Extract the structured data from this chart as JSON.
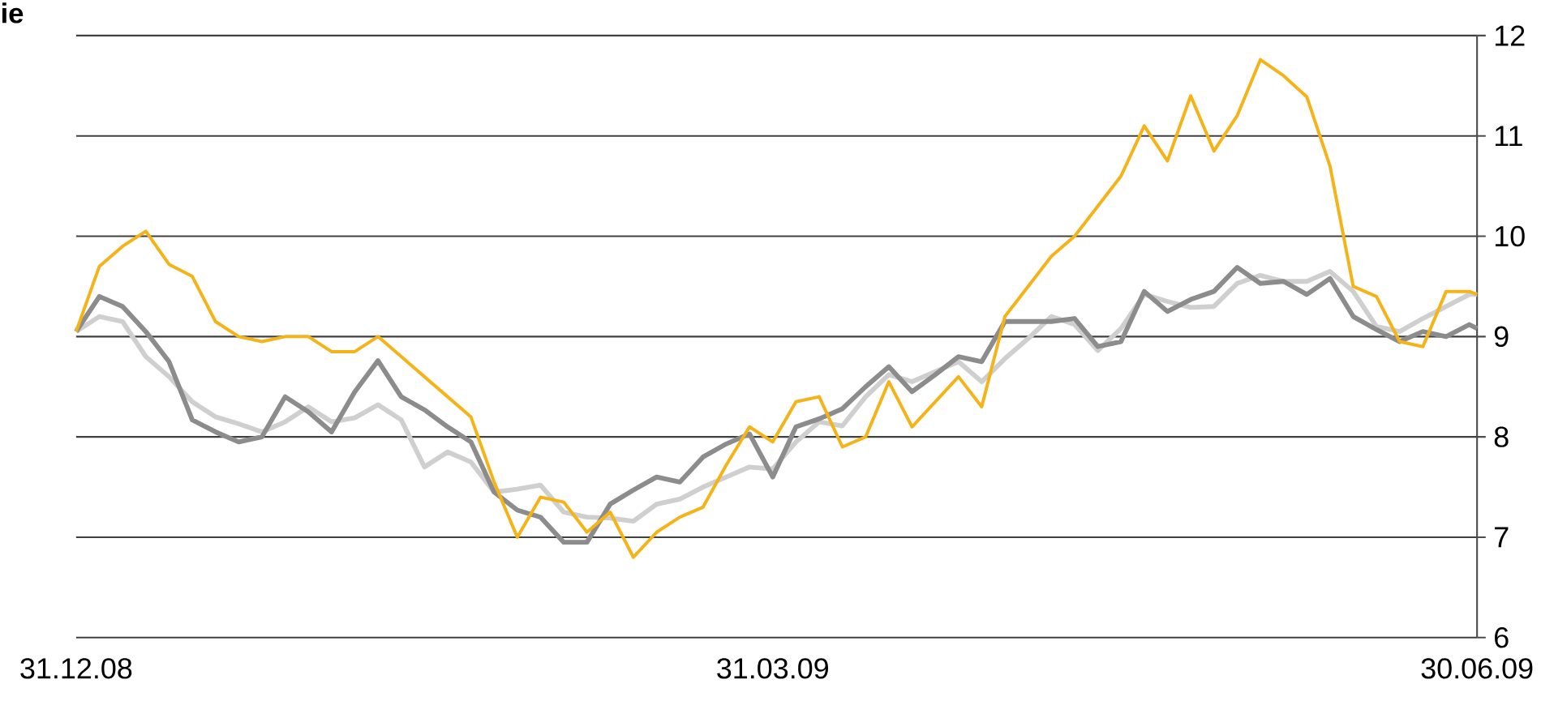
{
  "chart_data": {
    "type": "line",
    "title": "ie",
    "x": [
      "2008-12-31",
      "2009-01-03",
      "2009-01-06",
      "2009-01-09",
      "2009-01-12",
      "2009-01-15",
      "2009-01-18",
      "2009-01-21",
      "2009-01-24",
      "2009-01-27",
      "2009-01-30",
      "2009-02-02",
      "2009-02-05",
      "2009-02-08",
      "2009-02-11",
      "2009-02-14",
      "2009-02-17",
      "2009-02-20",
      "2009-02-23",
      "2009-02-26",
      "2009-03-01",
      "2009-03-04",
      "2009-03-07",
      "2009-03-10",
      "2009-03-13",
      "2009-03-16",
      "2009-03-19",
      "2009-03-22",
      "2009-03-25",
      "2009-03-28",
      "2009-03-31",
      "2009-04-03",
      "2009-04-06",
      "2009-04-09",
      "2009-04-12",
      "2009-04-15",
      "2009-04-18",
      "2009-04-21",
      "2009-04-24",
      "2009-04-27",
      "2009-04-30",
      "2009-05-03",
      "2009-05-06",
      "2009-05-09",
      "2009-05-12",
      "2009-05-15",
      "2009-05-18",
      "2009-05-21",
      "2009-05-24",
      "2009-05-27",
      "2009-05-30",
      "2009-06-02",
      "2009-06-05",
      "2009-06-08",
      "2009-06-11",
      "2009-06-14",
      "2009-06-17",
      "2009-06-20",
      "2009-06-23",
      "2009-06-26",
      "2009-06-29",
      "2009-06-30"
    ],
    "series": [
      {
        "color": "#cfcfcf",
        "values": [
          9.05,
          9.2,
          9.15,
          8.8,
          8.6,
          8.35,
          8.2,
          8.13,
          8.05,
          8.15,
          8.3,
          8.15,
          8.19,
          8.32,
          8.17,
          7.7,
          7.85,
          7.75,
          7.45,
          7.48,
          7.52,
          7.25,
          7.2,
          7.19,
          7.16,
          7.33,
          7.38,
          7.5,
          7.6,
          7.7,
          7.68,
          7.95,
          8.15,
          8.11,
          8.4,
          8.62,
          8.55,
          8.65,
          8.75,
          8.55,
          8.78,
          8.98,
          9.2,
          9.12,
          8.86,
          9.08,
          9.42,
          9.35,
          9.29,
          9.3,
          9.53,
          9.61,
          9.55,
          9.55,
          9.65,
          9.45,
          9.1,
          9.05,
          9.18,
          9.3,
          9.42,
          9.42
        ]
      },
      {
        "color": "#8c8c8c",
        "values": [
          9.05,
          9.4,
          9.3,
          9.05,
          8.75,
          8.17,
          8.05,
          7.95,
          8.0,
          8.4,
          8.25,
          8.05,
          8.45,
          8.76,
          8.4,
          8.27,
          8.1,
          7.95,
          7.45,
          7.27,
          7.2,
          6.95,
          6.95,
          7.33,
          7.47,
          7.6,
          7.55,
          7.8,
          7.93,
          8.03,
          7.6,
          8.1,
          8.18,
          8.28,
          8.5,
          8.7,
          8.45,
          8.62,
          8.8,
          8.75,
          9.15,
          9.15,
          9.15,
          9.18,
          8.9,
          8.95,
          9.45,
          9.25,
          9.37,
          9.45,
          9.69,
          9.53,
          9.55,
          9.42,
          9.58,
          9.2,
          9.07,
          8.95,
          9.05,
          9.0,
          9.12,
          9.08
        ]
      },
      {
        "color": "#f5b31a",
        "values": [
          9.05,
          9.7,
          9.9,
          10.05,
          9.72,
          9.6,
          9.15,
          9.0,
          8.95,
          9.0,
          9.0,
          8.85,
          8.85,
          9.0,
          8.8,
          8.6,
          8.4,
          8.2,
          7.55,
          7.0,
          7.4,
          7.35,
          7.05,
          7.25,
          6.8,
          7.05,
          7.2,
          7.3,
          7.72,
          8.1,
          7.95,
          8.35,
          8.4,
          7.9,
          8.0,
          8.55,
          8.1,
          8.35,
          8.6,
          8.3,
          9.2,
          9.5,
          9.8,
          10.0,
          10.3,
          10.6,
          11.1,
          10.75,
          11.4,
          10.85,
          11.2,
          11.76,
          11.6,
          11.39,
          10.7,
          9.5,
          9.4,
          8.95,
          8.9,
          9.45,
          9.45,
          9.42
        ]
      }
    ],
    "xlim": [
      "2008-12-31",
      "2009-06-30"
    ],
    "xticks": [
      {
        "value": "2008-12-31",
        "label": "31.12.08"
      },
      {
        "value": "2009-03-31",
        "label": "31.03.09"
      },
      {
        "value": "2009-06-30",
        "label": "30.06.09"
      }
    ],
    "ylim": [
      6,
      12
    ],
    "yticks": [
      6,
      7,
      8,
      9,
      10,
      11,
      12
    ],
    "grid": "y"
  }
}
